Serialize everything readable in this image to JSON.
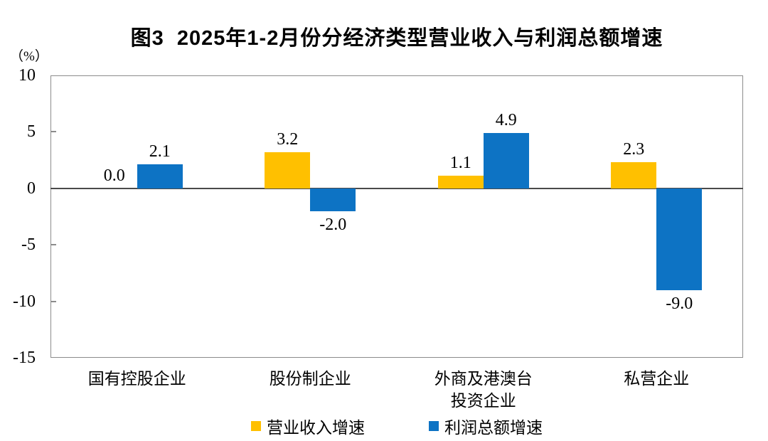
{
  "figure": {
    "title": "图3  2025年1-2月份分经济类型营业收入与利润总额增速",
    "y_axis_unit": "（%）"
  },
  "chart_data": {
    "type": "bar",
    "title": "图3 2025年1-2月份分经济类型营业收入与利润总额增速",
    "categories": [
      "国有控股企业",
      "股份制企业",
      "外商及港澳台\n投资企业",
      "私营企业"
    ],
    "series": [
      {
        "name": "营业收入增速",
        "color": "#FFC000",
        "values": [
          0.0,
          3.2,
          1.1,
          2.3
        ]
      },
      {
        "name": "利润总额增速",
        "color": "#0D73C4",
        "values": [
          2.1,
          -2.0,
          4.9,
          -9.0
        ]
      }
    ],
    "ylabel": "（%）",
    "ylim": [
      -15,
      10
    ],
    "yticks": [
      10,
      5,
      0,
      -5,
      -10,
      -15
    ],
    "grid": false,
    "legend_position": "bottom",
    "value_labels": "one_decimal"
  }
}
